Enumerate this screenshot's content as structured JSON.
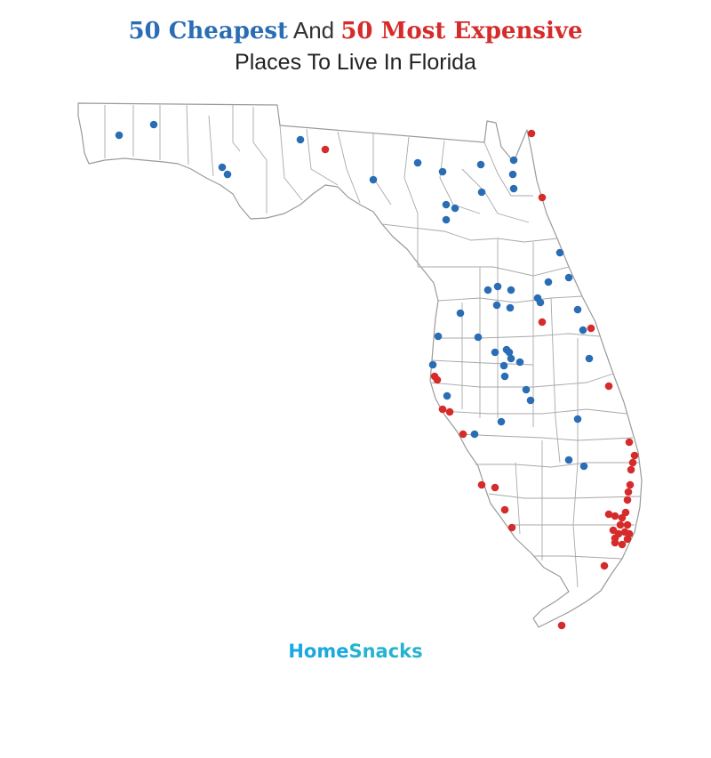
{
  "title": {
    "part1": "50 Cheapest",
    "part2": " And ",
    "part3": "50 Most Expensive",
    "subtitle": "Places To Live In Florida"
  },
  "brand": {
    "home": "Home",
    "snacks": "Snacks"
  },
  "colors": {
    "cheapest": "#2a6db5",
    "expensive": "#d62b2b",
    "border": "#9a9a9a"
  },
  "legend_series": [
    "50 Cheapest",
    "50 Most Expensive"
  ]
}
